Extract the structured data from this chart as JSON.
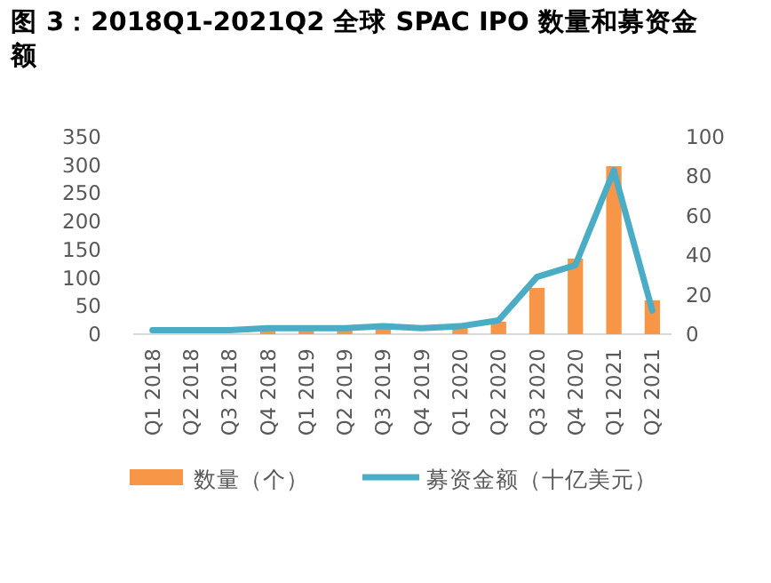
{
  "chart_data": {
    "type": "bar",
    "title": "图 3：2018Q1-2021Q2 全球 SPAC IPO 数量和募资金额",
    "categories": [
      "Q1 2018",
      "Q2 2018",
      "Q3 2018",
      "Q4 2018",
      "Q1 2019",
      "Q2 2019",
      "Q3 2019",
      "Q4 2019",
      "Q1 2020",
      "Q2 2020",
      "Q3 2020",
      "Q4 2020",
      "Q1 2021",
      "Q2 2021"
    ],
    "series": [
      {
        "name": "数量（个）",
        "color": "#f79646",
        "values": [
          null,
          null,
          null,
          8,
          8,
          8,
          14,
          null,
          12,
          22,
          82,
          134,
          298,
          60
        ]
      },
      {
        "name": "募资金额（十亿美元）",
        "type": "line",
        "axis": "y2",
        "color": "#4bacc6",
        "values": [
          2,
          2,
          2,
          3,
          3,
          3,
          4,
          3,
          4,
          7,
          29,
          35,
          83,
          12
        ]
      }
    ],
    "ylim": [
      0,
      350
    ],
    "yticks": [
      0,
      50,
      100,
      150,
      200,
      250,
      300,
      350
    ],
    "y2lim": [
      0,
      100
    ],
    "y2ticks": [
      0,
      20,
      40,
      60,
      80,
      100
    ],
    "legend": "bottom"
  }
}
